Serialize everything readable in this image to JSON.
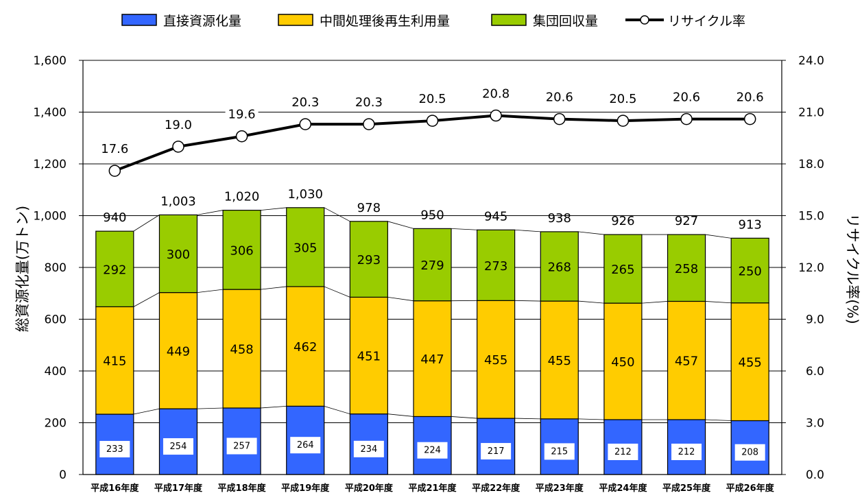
{
  "chart_data": {
    "type": "bar",
    "stacked": true,
    "categories": [
      "平成16年度",
      "平成17年度",
      "平成18年度",
      "平成19年度",
      "平成20年度",
      "平成21年度",
      "平成22年度",
      "平成23年度",
      "平成24年度",
      "平成25年度",
      "平成26年度"
    ],
    "series": [
      {
        "name": "直接資源化量",
        "color": "#3366ff",
        "values": [
          233,
          254,
          257,
          264,
          234,
          224,
          217,
          215,
          212,
          212,
          208
        ]
      },
      {
        "name": "中間処理後再生利用量",
        "color": "#ffcc00",
        "values": [
          415,
          449,
          458,
          462,
          451,
          447,
          455,
          455,
          450,
          457,
          455
        ]
      },
      {
        "name": "集団回収量",
        "color": "#99cc00",
        "values": [
          292,
          300,
          306,
          305,
          293,
          279,
          273,
          268,
          265,
          258,
          250
        ]
      }
    ],
    "totals": [
      "940",
      "1,003",
      "1,020",
      "1,030",
      "978",
      "950",
      "945",
      "938",
      "926",
      "927",
      "913"
    ],
    "line_series": {
      "name": "リサイクル率",
      "axis": "right",
      "values": [
        17.6,
        19.0,
        19.6,
        20.3,
        20.3,
        20.5,
        20.8,
        20.6,
        20.5,
        20.6,
        20.6
      ],
      "labels": [
        "17.6",
        "19.0",
        "19.6",
        "20.3",
        "20.3",
        "20.5",
        "20.8",
        "20.6",
        "20.5",
        "20.6",
        "20.6"
      ]
    },
    "ylabel": "総資源化量(万トン)",
    "y2label": "リサイクル率(%)",
    "ylim": [
      0,
      1600
    ],
    "y2lim": [
      0,
      24
    ],
    "yticks": [
      "0",
      "200",
      "400",
      "600",
      "800",
      "1,000",
      "1,200",
      "1,400",
      "1,600"
    ],
    "y2ticks": [
      "0.0",
      "3.0",
      "6.0",
      "9.0",
      "12.0",
      "15.0",
      "18.0",
      "21.0",
      "24.0"
    ],
    "grid": true,
    "legend_position": "top"
  },
  "colors": {
    "line": "#000000",
    "grid": "#000000"
  }
}
